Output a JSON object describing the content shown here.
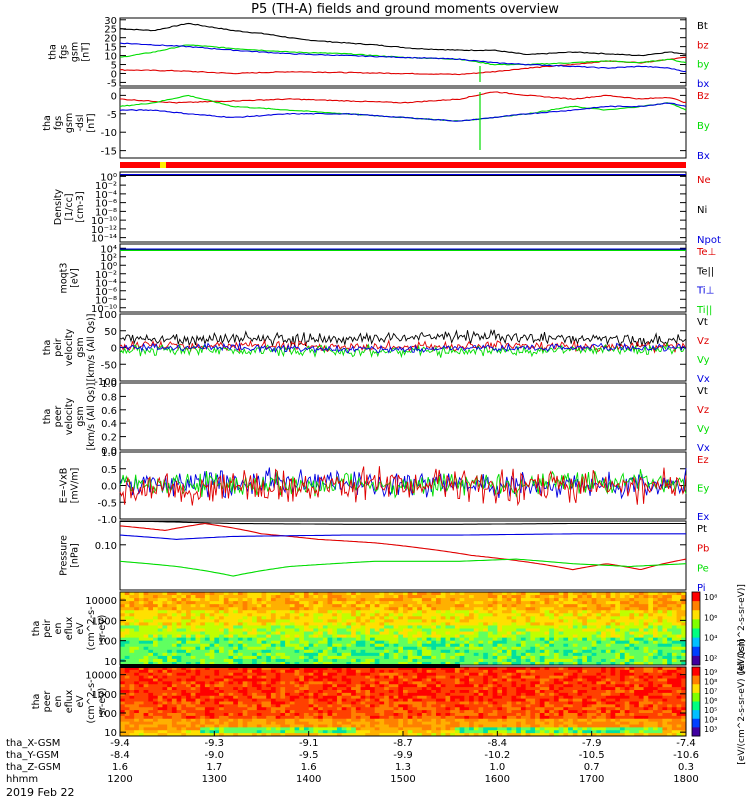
{
  "title": "P5 (TH-A) fields and ground moments overview",
  "date": "2019 Feb 22",
  "colors": {
    "black": "#000000",
    "red": "#e00000",
    "green": "#00dd00",
    "blue": "#0000e0",
    "yellow": "#ffee00"
  },
  "chart_data": [
    {
      "type": "line",
      "id": "p1",
      "ylabel": [
        "tha",
        "fgs",
        "gsm",
        "[nT]"
      ],
      "ylim": [
        -7,
        31
      ],
      "yticks": [
        "30",
        "25",
        "20",
        "15",
        "10",
        "5",
        "0",
        "-5"
      ],
      "tickvals": [
        30,
        25,
        20,
        15,
        10,
        5,
        0,
        -5
      ],
      "legend": [
        {
          "name": "Bt",
          "color": "#000000"
        },
        {
          "name": "bz",
          "color": "#e00000"
        },
        {
          "name": "by",
          "color": "#00dd00"
        },
        {
          "name": "bx",
          "color": "#0000e0"
        }
      ],
      "series": [
        {
          "name": "Bt",
          "color": "#000000",
          "x": [
            0,
            0.06,
            0.12,
            0.2,
            0.26,
            0.32,
            0.38,
            0.45,
            0.52,
            0.6,
            0.66,
            0.72,
            0.8,
            0.86,
            0.92,
            0.97,
            1.0
          ],
          "y": [
            25,
            24,
            28,
            24,
            22,
            19,
            17.5,
            16,
            14,
            13,
            13,
            10.5,
            12,
            11,
            10,
            12,
            11
          ]
        },
        {
          "name": "bz",
          "color": "#e00000",
          "x": [
            0,
            0.1,
            0.2,
            0.3,
            0.4,
            0.5,
            0.6,
            0.66,
            0.72,
            0.8,
            0.86,
            0.92,
            0.97,
            1.0
          ],
          "y": [
            2,
            1.5,
            0,
            1,
            0.5,
            0,
            -0.5,
            1,
            3,
            5,
            7,
            6,
            8,
            9
          ]
        },
        {
          "name": "by",
          "color": "#00dd00",
          "x": [
            0,
            0.06,
            0.12,
            0.2,
            0.3,
            0.4,
            0.5,
            0.6,
            0.66,
            0.72,
            0.8,
            0.86,
            0.92,
            0.97,
            1.0
          ],
          "y": [
            9,
            12,
            16,
            14,
            12,
            11,
            9,
            8,
            5,
            5,
            6,
            7,
            6,
            8,
            6
          ]
        },
        {
          "name": "bx",
          "color": "#0000e0",
          "x": [
            0,
            0.06,
            0.12,
            0.2,
            0.3,
            0.4,
            0.5,
            0.6,
            0.66,
            0.72,
            0.8,
            0.86,
            0.92,
            0.97,
            1.0
          ],
          "y": [
            17,
            16,
            15,
            13,
            11,
            10,
            9,
            8,
            6,
            5,
            4,
            3,
            4,
            3,
            1
          ]
        }
      ]
    },
    {
      "type": "line",
      "id": "p2",
      "ylabel": [
        "tha",
        "fgs",
        "gsm",
        "-dsl",
        "[nT]"
      ],
      "ylim": [
        -17,
        2
      ],
      "yticks": [
        "0",
        "-5",
        "-10",
        "-15"
      ],
      "tickvals": [
        0,
        -5,
        -10,
        -15
      ],
      "legend": [
        {
          "name": "Bz",
          "color": "#e00000"
        },
        {
          "name": "By",
          "color": "#00dd00"
        },
        {
          "name": "Bx",
          "color": "#0000e0"
        }
      ],
      "series": [
        {
          "name": "Bz",
          "color": "#e00000",
          "x": [
            0,
            0.1,
            0.2,
            0.3,
            0.4,
            0.5,
            0.6,
            0.66,
            0.72,
            0.8,
            0.86,
            0.92,
            0.97,
            1.0
          ],
          "y": [
            -1,
            -2,
            -1.5,
            -1,
            -1.5,
            -2,
            -1,
            1,
            0,
            -1,
            0,
            -1,
            -0.5,
            -2
          ]
        },
        {
          "name": "By",
          "color": "#00dd00",
          "x": [
            0,
            0.06,
            0.12,
            0.2,
            0.3,
            0.4,
            0.5,
            0.6,
            0.66,
            0.72,
            0.8,
            0.86,
            0.92,
            0.97,
            1.0
          ],
          "y": [
            -3,
            -2,
            0,
            -3,
            -4,
            -5,
            -6,
            -7,
            -6,
            -5,
            -3,
            -4,
            -3,
            -2,
            -4
          ]
        },
        {
          "name": "Bx",
          "color": "#0000e0",
          "x": [
            0,
            0.06,
            0.12,
            0.2,
            0.3,
            0.4,
            0.5,
            0.6,
            0.66,
            0.72,
            0.8,
            0.86,
            0.92,
            0.97,
            1.0
          ],
          "y": [
            -4,
            -4,
            -5,
            -6,
            -5,
            -5,
            -6,
            -7,
            -6,
            -5,
            -4,
            -3,
            -3,
            -2,
            -3
          ]
        }
      ]
    },
    {
      "type": "line",
      "id": "p3",
      "ylabel": [
        "Density",
        "[1/cc]",
        "[cm-3]"
      ],
      "ylim": [
        -15,
        1
      ],
      "yticks": [
        "10⁰",
        "10⁻²",
        "10⁻⁴",
        "10⁻⁶",
        "10⁻⁸",
        "10⁻¹⁰",
        "10⁻¹²",
        "10⁻¹⁴"
      ],
      "tickvals": [
        0,
        -2,
        -4,
        -6,
        -8,
        -10,
        -12,
        -14
      ],
      "legend": [
        {
          "name": "Ne",
          "color": "#e00000"
        },
        {
          "name": "Ni",
          "color": "#000000"
        },
        {
          "name": "Npot",
          "color": "#0000e0"
        }
      ],
      "series": [
        {
          "name": "Ne",
          "color": "#e00000",
          "x": [
            0,
            1
          ],
          "y": [
            0.3,
            0.3
          ]
        },
        {
          "name": "Ni",
          "color": "#000000",
          "x": [
            0,
            1
          ],
          "y": [
            0.2,
            0.2
          ]
        },
        {
          "name": "Npot",
          "color": "#0000e0",
          "x": [
            0,
            1
          ],
          "y": [
            0.4,
            0.4
          ]
        }
      ]
    },
    {
      "type": "line",
      "id": "p4",
      "ylabel": [
        "moqt3",
        "[eV]"
      ],
      "ylim": [
        -11,
        5
      ],
      "yticks": [
        "10⁴",
        "10²",
        "10⁰",
        "10⁻²",
        "10⁻⁴",
        "10⁻⁶",
        "10⁻⁸",
        "10⁻¹⁰"
      ],
      "tickvals": [
        4,
        2,
        0,
        -2,
        -4,
        -6,
        -8,
        -10
      ],
      "legend": [
        {
          "name": "Te⊥",
          "color": "#e00000"
        },
        {
          "name": "Te||",
          "color": "#000000"
        },
        {
          "name": "Ti⊥",
          "color": "#0000e0"
        },
        {
          "name": "Ti||",
          "color": "#00dd00"
        }
      ],
      "series": [
        {
          "name": "Te⊥",
          "color": "#e00000",
          "x": [
            0,
            1
          ],
          "y": [
            3.6,
            3.6
          ]
        },
        {
          "name": "Te||",
          "color": "#000000",
          "x": [
            0,
            1
          ],
          "y": [
            3.7,
            3.7
          ]
        },
        {
          "name": "Ti⊥",
          "color": "#0000e0",
          "x": [
            0,
            1
          ],
          "y": [
            3.8,
            3.8
          ]
        },
        {
          "name": "Ti||",
          "color": "#00dd00",
          "x": [
            0,
            1
          ],
          "y": [
            3.5,
            3.5
          ]
        }
      ]
    },
    {
      "type": "line",
      "id": "p5",
      "ylabel": [
        "tha",
        "peir",
        "velocity",
        "gsm",
        "[km/s (All Qs)]"
      ],
      "ylim": [
        -100,
        100
      ],
      "yticks": [
        "100",
        "50",
        "0",
        "-50",
        "-100"
      ],
      "tickvals": [
        100,
        50,
        0,
        -50,
        -100
      ],
      "legend": [
        {
          "name": "Vt",
          "color": "#000000"
        },
        {
          "name": "Vz",
          "color": "#e00000"
        },
        {
          "name": "Vy",
          "color": "#00dd00"
        },
        {
          "name": "Vx",
          "color": "#0000e0"
        }
      ],
      "series": [
        {
          "name": "Vt",
          "color": "#000000",
          "x": [
            0,
            0.2,
            0.4,
            0.6,
            0.8,
            1.0
          ],
          "y": [
            25,
            28,
            22,
            35,
            25,
            20
          ],
          "noise": 16
        },
        {
          "name": "Vz",
          "color": "#e00000",
          "x": [
            0,
            0.2,
            0.4,
            0.6,
            0.8,
            1.0
          ],
          "y": [
            5,
            5,
            0,
            5,
            3,
            2
          ],
          "noise": 14
        },
        {
          "name": "Vy",
          "color": "#00dd00",
          "x": [
            0,
            0.2,
            0.4,
            0.6,
            0.8,
            1.0
          ],
          "y": [
            -10,
            -8,
            -10,
            -12,
            -8,
            -5
          ],
          "noise": 14
        },
        {
          "name": "Vx",
          "color": "#0000e0",
          "x": [
            0,
            0.2,
            0.4,
            0.6,
            0.8,
            1.0
          ],
          "y": [
            0,
            0,
            -5,
            -3,
            0,
            0
          ],
          "noise": 10
        }
      ]
    },
    {
      "type": "line",
      "id": "p6",
      "ylabel": [
        "tha",
        "peer",
        "velocity",
        "gsm",
        "[km/s (All Qs)]"
      ],
      "ylim": [
        0,
        1.0
      ],
      "yticks": [
        "1.0",
        "0.8",
        "0.6",
        "0.4",
        "0.2",
        "0.0"
      ],
      "tickvals": [
        1.0,
        0.8,
        0.6,
        0.4,
        0.2,
        0.0
      ],
      "legend": [
        {
          "name": "Vt",
          "color": "#000000"
        },
        {
          "name": "Vz",
          "color": "#e00000"
        },
        {
          "name": "Vy",
          "color": "#00dd00"
        },
        {
          "name": "Vx",
          "color": "#0000e0"
        }
      ],
      "series": []
    },
    {
      "type": "line",
      "id": "p7",
      "ylabel": [
        "E=-VxB",
        "[mV/m]"
      ],
      "ylim": [
        -1.0,
        1.0
      ],
      "yticks": [
        "1.0",
        "0.5",
        "0.0",
        "-0.5",
        "-1.0"
      ],
      "tickvals": [
        1.0,
        0.5,
        0.0,
        -0.5,
        -1.0
      ],
      "legend": [
        {
          "name": "Ez",
          "color": "#e00000"
        },
        {
          "name": "Ey",
          "color": "#00dd00"
        },
        {
          "name": "Ex",
          "color": "#0000e0"
        }
      ],
      "series": [
        {
          "name": "Ex",
          "color": "#0000e0",
          "x": [
            0,
            0.25,
            0.5,
            0.75,
            1.0
          ],
          "y": [
            0.1,
            0.1,
            0.05,
            0.0,
            0.05
          ],
          "noise": 0.35
        },
        {
          "name": "Ey",
          "color": "#00dd00",
          "x": [
            0,
            0.25,
            0.5,
            0.75,
            1.0
          ],
          "y": [
            0.0,
            0.05,
            0.0,
            0.1,
            0.1
          ],
          "noise": 0.3
        },
        {
          "name": "Ez",
          "color": "#e00000",
          "x": [
            0,
            0.25,
            0.5,
            0.75,
            1.0
          ],
          "y": [
            -0.15,
            -0.05,
            0.0,
            -0.05,
            0.0
          ],
          "noise": 0.45
        }
      ]
    },
    {
      "type": "line",
      "id": "p8",
      "ylabel": [
        "Pressure",
        "[nPa]"
      ],
      "ylim": [
        -1.95,
        -0.5
      ],
      "yticks": [
        "0.10",
        "0.01"
      ],
      "tickvals": [
        -1,
        -2
      ],
      "legend": [
        {
          "name": "Pt",
          "color": "#000000"
        },
        {
          "name": "Pb",
          "color": "#e00000"
        },
        {
          "name": "Pe",
          "color": "#00dd00"
        },
        {
          "name": "Pi",
          "color": "#0000e0"
        }
      ],
      "series": [
        {
          "name": "Pt",
          "color": "#000000",
          "x": [
            0,
            0.1,
            0.2,
            0.4,
            0.6,
            0.8,
            1.0
          ],
          "y": [
            0.32,
            0.3,
            0.28,
            0.27,
            0.27,
            0.28,
            0.28
          ]
        },
        {
          "name": "Pb",
          "color": "#e00000",
          "x": [
            0,
            0.08,
            0.15,
            0.25,
            0.35,
            0.45,
            0.55,
            0.62,
            0.68,
            0.74,
            0.8,
            0.86,
            0.92,
            1.0
          ],
          "y": [
            0.25,
            0.2,
            0.28,
            0.17,
            0.13,
            0.11,
            0.08,
            0.06,
            0.05,
            0.04,
            0.03,
            0.04,
            0.03,
            0.05
          ]
        },
        {
          "name": "Pe",
          "color": "#00dd00",
          "x": [
            0,
            0.1,
            0.2,
            0.3,
            0.45,
            0.6,
            0.7,
            0.8,
            0.9,
            1.0
          ],
          "y": [
            0.045,
            0.035,
            0.022,
            0.035,
            0.045,
            0.045,
            0.05,
            0.04,
            0.035,
            0.04
          ]
        },
        {
          "name": "Pi",
          "color": "#0000e0",
          "x": [
            0,
            0.1,
            0.2,
            0.4,
            0.6,
            0.8,
            1.0
          ],
          "y": [
            0.16,
            0.13,
            0.15,
            0.16,
            0.16,
            0.17,
            0.17
          ]
        }
      ]
    },
    {
      "type": "heatmap",
      "id": "p9",
      "ylabel": [
        "tha",
        "peir",
        "en",
        "eflux",
        "eV",
        "(cm^2-s-",
        "sr-eV)"
      ],
      "yticks": [
        "10000",
        "1000",
        "100",
        "10"
      ],
      "tickvals": [
        4,
        3,
        2,
        1
      ],
      "ylim": [
        0.8,
        4.4
      ],
      "colorbar": {
        "label": "[eV/(cm^2-s-sr-eV)]",
        "ticks": [
          "10⁸",
          "10⁶",
          "10⁴",
          "10²"
        ]
      }
    },
    {
      "type": "heatmap",
      "id": "p10",
      "ylabel": [
        "tha",
        "peer",
        "en",
        "eflux",
        "eV",
        "(cm^2-s-",
        "sr-eV)"
      ],
      "yticks": [
        "10000",
        "1000",
        "100",
        "10"
      ],
      "tickvals": [
        4,
        3,
        2,
        1
      ],
      "ylim": [
        0.8,
        4.4
      ],
      "colorbar": {
        "label": "[eV/(cm^2-s-sr-eV) (All Qs)]",
        "ticks": [
          "10⁹",
          "10⁸",
          "10⁷",
          "10⁶",
          "10⁵",
          "10⁴",
          "10³"
        ]
      }
    }
  ],
  "xaxis": {
    "rows": [
      {
        "label": "tha_X-GSM",
        "values": [
          "-9.4",
          "-9.3",
          "-9.1",
          "-8.7",
          "-8.4",
          "-7.9",
          "-7.4"
        ]
      },
      {
        "label": "tha_Y-GSM",
        "values": [
          "-8.4",
          "-9.0",
          "-9.5",
          "-9.9",
          "-10.2",
          "-10.5",
          "-10.6"
        ]
      },
      {
        "label": "tha_Z-GSM",
        "values": [
          "1.6",
          "1.7",
          "1.6",
          "1.3",
          "1.0",
          "0.7",
          "0.3"
        ]
      },
      {
        "label": "hhmm",
        "values": [
          "1200",
          "1300",
          "1400",
          "1500",
          "1600",
          "1700",
          "1800"
        ]
      }
    ]
  }
}
